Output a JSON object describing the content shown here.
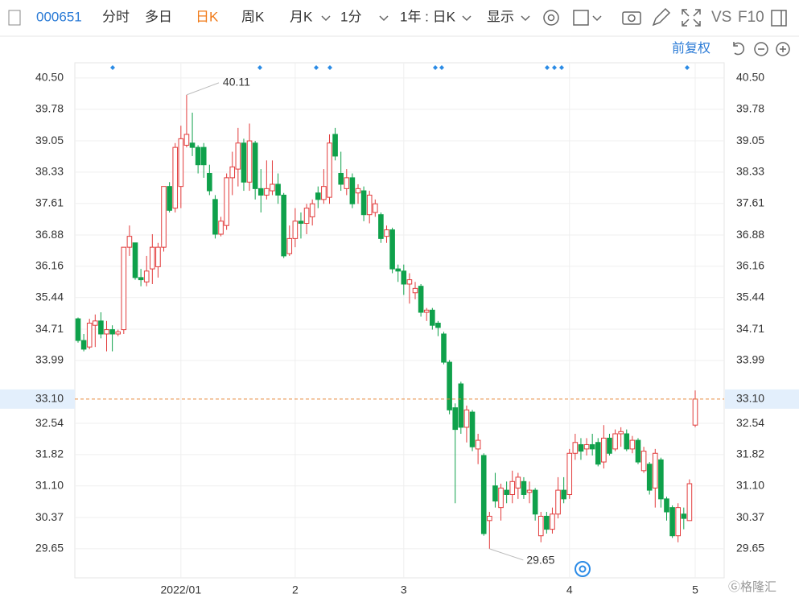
{
  "toolbar": {
    "code": "000651",
    "tabs": [
      "分时",
      "多日",
      "日K",
      "周K",
      "月K",
      "1分",
      "1年 : 日K",
      "显示"
    ],
    "compare": "VS",
    "f10": "F10",
    "adjust": "前复权"
  },
  "chart_data": {
    "type": "candlestick",
    "ylim": [
      28.98,
      40.85
    ],
    "yticks": [
      {
        "value": 40.5,
        "label": "40.50"
      },
      39.78,
      39.05,
      38.33,
      37.61,
      36.88,
      36.16,
      35.44,
      34.71,
      33.99,
      32.54,
      31.82,
      {
        "value": 31.1,
        "label": "31.10"
      },
      30.37,
      29.65
    ],
    "grid": true,
    "up_color": "#e23b3b",
    "down_color": "#0fa14b",
    "current_price": {
      "value": 33.1,
      "label": "33.10"
    },
    "categories": [
      null,
      null,
      null,
      null,
      null,
      null,
      null,
      null,
      null,
      null,
      null,
      null,
      null,
      null,
      null,
      null,
      null,
      null,
      "2022/01",
      null,
      null,
      null,
      null,
      null,
      null,
      null,
      null,
      null,
      null,
      null,
      null,
      null,
      null,
      null,
      null,
      null,
      null,
      null,
      "2",
      null,
      null,
      null,
      null,
      null,
      null,
      null,
      null,
      null,
      null,
      null,
      null,
      null,
      null,
      null,
      null,
      null,
      null,
      "3",
      null,
      null,
      null,
      null,
      null,
      null,
      null,
      null,
      null,
      null,
      null,
      null,
      null,
      null,
      null,
      null,
      null,
      null,
      null,
      null,
      null,
      null,
      null,
      null,
      null,
      null,
      null,
      null,
      "4",
      null,
      null,
      null,
      null,
      null,
      null,
      null,
      null,
      null,
      null,
      null,
      null,
      null,
      null,
      null,
      null,
      null,
      null,
      null,
      null,
      null,
      "5"
    ],
    "ohlc": [
      [
        34.95,
        34.98,
        34.4,
        34.45
      ],
      [
        34.45,
        34.6,
        34.2,
        34.25
      ],
      [
        34.3,
        34.95,
        34.25,
        34.85
      ],
      [
        34.8,
        35.05,
        34.3,
        34.9
      ],
      [
        34.9,
        35.1,
        34.5,
        34.6
      ],
      [
        34.6,
        34.9,
        34.2,
        34.7
      ],
      [
        34.7,
        34.8,
        34.2,
        34.6
      ],
      [
        34.6,
        34.7,
        34.55,
        34.65
      ],
      [
        34.7,
        36.6,
        34.6,
        36.6
      ],
      [
        36.6,
        37.1,
        36.4,
        36.85
      ],
      [
        36.7,
        36.7,
        35.85,
        35.9
      ],
      [
        35.9,
        36.1,
        35.7,
        35.85
      ],
      [
        35.8,
        36.4,
        35.7,
        36.05
      ],
      [
        36.1,
        36.9,
        35.75,
        36.6
      ],
      [
        36.15,
        36.7,
        35.9,
        36.6
      ],
      [
        36.6,
        38.0,
        36.5,
        38.0
      ],
      [
        38.0,
        38.1,
        37.4,
        37.45
      ],
      [
        37.5,
        39.0,
        37.4,
        38.9
      ],
      [
        38.0,
        39.4,
        37.5,
        39.1
      ],
      [
        38.95,
        40.11,
        38.9,
        39.2
      ],
      [
        39.0,
        39.7,
        38.7,
        38.9
      ],
      [
        38.9,
        38.95,
        38.3,
        38.5
      ],
      [
        38.9,
        39.0,
        38.2,
        38.5
      ],
      [
        38.3,
        38.5,
        37.8,
        37.9
      ],
      [
        37.7,
        37.8,
        36.8,
        36.9
      ],
      [
        36.9,
        37.3,
        36.85,
        37.2
      ],
      [
        37.1,
        38.3,
        37.0,
        38.2
      ],
      [
        38.2,
        38.8,
        37.8,
        38.45
      ],
      [
        38.4,
        39.35,
        38.0,
        39.0
      ],
      [
        39.0,
        39.1,
        37.9,
        38.1
      ],
      [
        38.1,
        39.45,
        37.9,
        39.05
      ],
      [
        39.0,
        39.05,
        37.7,
        37.95
      ],
      [
        37.95,
        38.4,
        37.4,
        37.8
      ],
      [
        37.8,
        38.6,
        37.7,
        37.95
      ],
      [
        37.9,
        38.6,
        37.8,
        38.05
      ],
      [
        38.05,
        38.3,
        37.6,
        37.8
      ],
      [
        37.8,
        37.85,
        36.35,
        36.4
      ],
      [
        36.45,
        37.1,
        36.4,
        36.8
      ],
      [
        36.8,
        37.5,
        36.6,
        37.2
      ],
      [
        37.2,
        37.4,
        36.8,
        37.15
      ],
      [
        37.15,
        37.6,
        36.9,
        37.5
      ],
      [
        37.3,
        37.7,
        37.1,
        37.6
      ],
      [
        37.85,
        38.0,
        37.5,
        37.7
      ],
      [
        37.7,
        38.4,
        37.6,
        38.0
      ],
      [
        37.75,
        39.2,
        37.6,
        39.0
      ],
      [
        39.2,
        39.35,
        38.6,
        38.7
      ],
      [
        38.3,
        38.8,
        37.9,
        38.05
      ],
      [
        37.95,
        38.4,
        37.8,
        38.2
      ],
      [
        38.2,
        38.3,
        37.5,
        37.6
      ],
      [
        37.85,
        38.05,
        37.6,
        37.95
      ],
      [
        37.9,
        38.0,
        37.2,
        37.35
      ],
      [
        37.35,
        37.9,
        37.15,
        37.8
      ],
      [
        37.4,
        37.7,
        37.3,
        37.6
      ],
      [
        37.35,
        37.4,
        36.7,
        36.8
      ],
      [
        36.85,
        37.1,
        36.7,
        37.0
      ],
      [
        37.0,
        37.05,
        36.0,
        36.1
      ],
      [
        36.1,
        36.2,
        35.8,
        36.05
      ],
      [
        36.05,
        36.2,
        35.5,
        35.75
      ],
      [
        35.75,
        36.0,
        35.3,
        35.85
      ],
      [
        35.55,
        35.8,
        35.4,
        35.65
      ],
      [
        35.7,
        35.75,
        35.0,
        35.1
      ],
      [
        35.1,
        35.2,
        34.9,
        35.15
      ],
      [
        35.15,
        35.2,
        34.7,
        34.8
      ],
      [
        34.85,
        34.9,
        34.55,
        34.75
      ],
      [
        34.6,
        34.65,
        33.9,
        33.95
      ],
      [
        33.95,
        34.0,
        32.75,
        32.85
      ],
      [
        32.9,
        33.0,
        30.7,
        32.4
      ],
      [
        33.45,
        33.5,
        32.3,
        32.45
      ],
      [
        32.45,
        32.95,
        32.1,
        32.85
      ],
      [
        32.8,
        32.85,
        31.9,
        32.0
      ],
      [
        31.95,
        32.3,
        31.6,
        32.15
      ],
      [
        31.8,
        31.85,
        29.95,
        30.0
      ],
      [
        30.3,
        30.5,
        29.65,
        30.4
      ],
      [
        31.1,
        31.4,
        30.6,
        30.75
      ],
      [
        30.6,
        31.15,
        30.3,
        31.05
      ],
      [
        31.0,
        31.2,
        30.7,
        30.9
      ],
      [
        30.9,
        31.45,
        30.7,
        31.2
      ],
      [
        31.05,
        31.4,
        30.8,
        31.3
      ],
      [
        31.2,
        31.3,
        30.8,
        30.9
      ],
      [
        30.95,
        31.2,
        30.7,
        31.0
      ],
      [
        31.0,
        31.05,
        30.3,
        30.45
      ],
      [
        29.95,
        30.5,
        29.8,
        30.4
      ],
      [
        30.4,
        30.5,
        30.0,
        30.1
      ],
      [
        30.1,
        30.6,
        30.0,
        30.45
      ],
      [
        30.45,
        31.3,
        30.35,
        31.0
      ],
      [
        31.0,
        31.3,
        30.7,
        30.8
      ],
      [
        30.9,
        31.95,
        30.8,
        31.85
      ],
      [
        31.85,
        32.3,
        31.7,
        32.1
      ],
      [
        32.05,
        32.2,
        31.7,
        31.9
      ],
      [
        31.95,
        32.2,
        31.8,
        32.05
      ],
      [
        32.05,
        32.3,
        31.8,
        31.95
      ],
      [
        32.1,
        32.2,
        31.55,
        31.6
      ],
      [
        31.65,
        32.5,
        31.5,
        32.2
      ],
      [
        32.2,
        32.3,
        31.8,
        31.85
      ],
      [
        31.95,
        32.4,
        31.9,
        32.3
      ],
      [
        32.3,
        32.45,
        32.0,
        32.35
      ],
      [
        32.3,
        32.4,
        31.9,
        31.95
      ],
      [
        31.95,
        32.25,
        31.85,
        32.15
      ],
      [
        32.15,
        32.2,
        31.6,
        31.65
      ],
      [
        31.45,
        32.0,
        31.4,
        31.9
      ],
      [
        31.6,
        31.65,
        30.9,
        31.0
      ],
      [
        31.05,
        31.95,
        30.6,
        31.85
      ],
      [
        31.7,
        31.75,
        30.6,
        30.8
      ],
      [
        30.8,
        30.85,
        30.3,
        30.5
      ],
      [
        30.6,
        30.65,
        29.9,
        29.95
      ],
      [
        29.95,
        30.7,
        29.8,
        30.6
      ],
      [
        30.45,
        30.6,
        30.1,
        30.35
      ],
      [
        30.3,
        31.25,
        30.3,
        31.15
      ],
      [
        32.5,
        33.3,
        32.45,
        33.1
      ]
    ]
  }
}
